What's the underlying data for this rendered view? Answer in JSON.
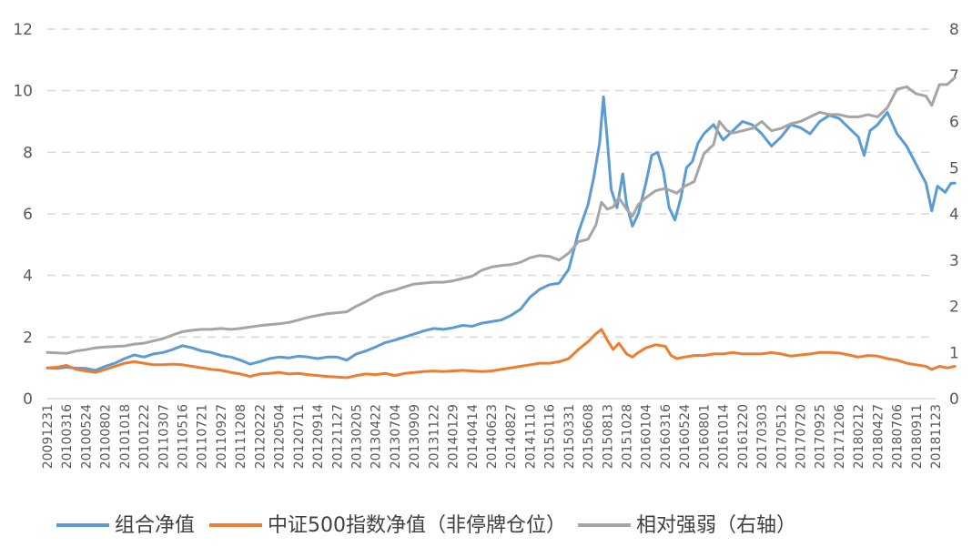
{
  "chart_data": {
    "type": "line",
    "title": "",
    "xlabel": "",
    "ylabel": "",
    "ylim": [
      0,
      12
    ],
    "y2lim": [
      0,
      8
    ],
    "left_ticks": [
      "0",
      "2",
      "4",
      "6",
      "8",
      "10",
      "12"
    ],
    "right_ticks": [
      "0",
      "1",
      "2",
      "3",
      "4",
      "5",
      "6",
      "7",
      "8"
    ],
    "grid": "horizontal dashed",
    "legend_position": "bottom",
    "x_tick_labels": [
      "20091231",
      "20100316",
      "20100524",
      "20100802",
      "20101018",
      "20101222",
      "20110307",
      "20110516",
      "20110721",
      "20110927",
      "20111208",
      "20120222",
      "20120504",
      "20120711",
      "20120914",
      "20121127",
      "20130205",
      "20130422",
      "20130704",
      "20130909",
      "20131122",
      "20140129",
      "20140414",
      "20140623",
      "20140827",
      "20141110",
      "20150116",
      "20150331",
      "20150608",
      "20150813",
      "20151028",
      "20160104",
      "20160316",
      "20160524",
      "20160801",
      "20161014",
      "20161220",
      "20170303",
      "20170512",
      "20170720",
      "20170925",
      "20171206",
      "20180212",
      "20180427",
      "20180706",
      "20180911",
      "20181123"
    ],
    "series": [
      {
        "name": "组合净值",
        "axis": "left",
        "color": "#5B9BD5",
        "points": [
          [
            0,
            1.0
          ],
          [
            0.5,
            0.98
          ],
          [
            1,
            1.02
          ],
          [
            1.5,
            0.99
          ],
          [
            2,
            0.98
          ],
          [
            2.5,
            0.92
          ],
          [
            3,
            1.05
          ],
          [
            3.5,
            1.15
          ],
          [
            4,
            1.3
          ],
          [
            4.5,
            1.42
          ],
          [
            5,
            1.35
          ],
          [
            5.5,
            1.45
          ],
          [
            6,
            1.5
          ],
          [
            6.5,
            1.6
          ],
          [
            7,
            1.72
          ],
          [
            7.5,
            1.65
          ],
          [
            8,
            1.55
          ],
          [
            8.5,
            1.5
          ],
          [
            9,
            1.4
          ],
          [
            9.5,
            1.35
          ],
          [
            10,
            1.25
          ],
          [
            10.5,
            1.12
          ],
          [
            11,
            1.2
          ],
          [
            11.5,
            1.3
          ],
          [
            12,
            1.35
          ],
          [
            12.5,
            1.32
          ],
          [
            13,
            1.38
          ],
          [
            13.5,
            1.35
          ],
          [
            14,
            1.3
          ],
          [
            14.5,
            1.35
          ],
          [
            15,
            1.35
          ],
          [
            15.5,
            1.25
          ],
          [
            16,
            1.45
          ],
          [
            16.5,
            1.55
          ],
          [
            17,
            1.68
          ],
          [
            17.5,
            1.82
          ],
          [
            18,
            1.9
          ],
          [
            18.5,
            2.0
          ],
          [
            19,
            2.1
          ],
          [
            19.5,
            2.2
          ],
          [
            20,
            2.28
          ],
          [
            20.5,
            2.25
          ],
          [
            21,
            2.3
          ],
          [
            21.5,
            2.38
          ],
          [
            22,
            2.35
          ],
          [
            22.5,
            2.45
          ],
          [
            23,
            2.5
          ],
          [
            23.5,
            2.55
          ],
          [
            24,
            2.7
          ],
          [
            24.5,
            2.9
          ],
          [
            25,
            3.3
          ],
          [
            25.5,
            3.55
          ],
          [
            26,
            3.7
          ],
          [
            26.5,
            3.75
          ],
          [
            27,
            4.2
          ],
          [
            27.5,
            5.4
          ],
          [
            28,
            6.3
          ],
          [
            28.3,
            7.2
          ],
          [
            28.6,
            8.3
          ],
          [
            28.8,
            9.8
          ],
          [
            29.0,
            8.4
          ],
          [
            29.2,
            6.8
          ],
          [
            29.5,
            6.2
          ],
          [
            29.8,
            7.3
          ],
          [
            30.0,
            6.3
          ],
          [
            30.3,
            5.6
          ],
          [
            30.6,
            6.0
          ],
          [
            31,
            7.0
          ],
          [
            31.3,
            7.9
          ],
          [
            31.6,
            8.0
          ],
          [
            31.9,
            7.4
          ],
          [
            32.2,
            6.2
          ],
          [
            32.5,
            5.8
          ],
          [
            32.8,
            6.5
          ],
          [
            33.1,
            7.5
          ],
          [
            33.4,
            7.7
          ],
          [
            33.7,
            8.3
          ],
          [
            34,
            8.6
          ],
          [
            34.5,
            8.9
          ],
          [
            35,
            8.4
          ],
          [
            35.5,
            8.7
          ],
          [
            36,
            9.0
          ],
          [
            36.5,
            8.9
          ],
          [
            37,
            8.6
          ],
          [
            37.5,
            8.2
          ],
          [
            38,
            8.5
          ],
          [
            38.5,
            8.9
          ],
          [
            39,
            8.8
          ],
          [
            39.5,
            8.6
          ],
          [
            40,
            9.0
          ],
          [
            40.5,
            9.2
          ],
          [
            41,
            9.1
          ],
          [
            41.5,
            8.8
          ],
          [
            42,
            8.5
          ],
          [
            42.3,
            7.9
          ],
          [
            42.6,
            8.7
          ],
          [
            43,
            8.9
          ],
          [
            43.5,
            9.3
          ],
          [
            44,
            8.6
          ],
          [
            44.5,
            8.2
          ],
          [
            45,
            7.6
          ],
          [
            45.5,
            7.0
          ],
          [
            45.8,
            6.1
          ],
          [
            46.1,
            6.9
          ],
          [
            46.5,
            6.7
          ],
          [
            46.8,
            7.0
          ],
          [
            47,
            7.0
          ]
        ]
      },
      {
        "name": "中证500指数净值（非停牌仓位）",
        "axis": "left",
        "color": "#ED7D31",
        "points": [
          [
            0,
            1.0
          ],
          [
            0.5,
            1.02
          ],
          [
            1,
            1.08
          ],
          [
            1.5,
            0.95
          ],
          [
            2,
            0.9
          ],
          [
            2.5,
            0.85
          ],
          [
            3,
            0.95
          ],
          [
            3.5,
            1.05
          ],
          [
            4,
            1.15
          ],
          [
            4.5,
            1.2
          ],
          [
            5,
            1.15
          ],
          [
            5.5,
            1.1
          ],
          [
            6,
            1.1
          ],
          [
            6.5,
            1.12
          ],
          [
            7,
            1.1
          ],
          [
            7.5,
            1.05
          ],
          [
            8,
            1.0
          ],
          [
            8.5,
            0.95
          ],
          [
            9,
            0.92
          ],
          [
            9.5,
            0.85
          ],
          [
            10,
            0.8
          ],
          [
            10.5,
            0.72
          ],
          [
            11,
            0.8
          ],
          [
            11.5,
            0.82
          ],
          [
            12,
            0.85
          ],
          [
            12.5,
            0.8
          ],
          [
            13,
            0.82
          ],
          [
            13.5,
            0.78
          ],
          [
            14,
            0.75
          ],
          [
            14.5,
            0.72
          ],
          [
            15,
            0.7
          ],
          [
            15.5,
            0.68
          ],
          [
            16,
            0.75
          ],
          [
            16.5,
            0.8
          ],
          [
            17,
            0.78
          ],
          [
            17.5,
            0.82
          ],
          [
            18,
            0.75
          ],
          [
            18.5,
            0.82
          ],
          [
            19,
            0.85
          ],
          [
            19.5,
            0.88
          ],
          [
            20,
            0.9
          ],
          [
            20.5,
            0.88
          ],
          [
            21,
            0.9
          ],
          [
            21.5,
            0.92
          ],
          [
            22,
            0.9
          ],
          [
            22.5,
            0.88
          ],
          [
            23,
            0.9
          ],
          [
            23.5,
            0.95
          ],
          [
            24,
            1.0
          ],
          [
            24.5,
            1.05
          ],
          [
            25,
            1.1
          ],
          [
            25.5,
            1.15
          ],
          [
            26,
            1.15
          ],
          [
            26.5,
            1.2
          ],
          [
            27,
            1.3
          ],
          [
            27.5,
            1.6
          ],
          [
            28,
            1.85
          ],
          [
            28.4,
            2.1
          ],
          [
            28.7,
            2.25
          ],
          [
            29.0,
            1.9
          ],
          [
            29.3,
            1.6
          ],
          [
            29.6,
            1.8
          ],
          [
            30.0,
            1.45
          ],
          [
            30.3,
            1.35
          ],
          [
            30.6,
            1.5
          ],
          [
            31,
            1.65
          ],
          [
            31.5,
            1.75
          ],
          [
            32,
            1.7
          ],
          [
            32.3,
            1.4
          ],
          [
            32.6,
            1.3
          ],
          [
            33,
            1.35
          ],
          [
            33.5,
            1.4
          ],
          [
            34,
            1.4
          ],
          [
            34.5,
            1.45
          ],
          [
            35,
            1.45
          ],
          [
            35.5,
            1.5
          ],
          [
            36,
            1.45
          ],
          [
            36.5,
            1.45
          ],
          [
            37,
            1.45
          ],
          [
            37.5,
            1.5
          ],
          [
            38,
            1.45
          ],
          [
            38.5,
            1.38
          ],
          [
            39,
            1.42
          ],
          [
            39.5,
            1.45
          ],
          [
            40,
            1.5
          ],
          [
            40.5,
            1.5
          ],
          [
            41,
            1.48
          ],
          [
            41.5,
            1.42
          ],
          [
            42,
            1.35
          ],
          [
            42.5,
            1.4
          ],
          [
            43,
            1.38
          ],
          [
            43.5,
            1.3
          ],
          [
            44,
            1.25
          ],
          [
            44.5,
            1.15
          ],
          [
            45,
            1.1
          ],
          [
            45.5,
            1.05
          ],
          [
            45.8,
            0.95
          ],
          [
            46.2,
            1.05
          ],
          [
            46.6,
            1.0
          ],
          [
            47,
            1.05
          ]
        ]
      },
      {
        "name": "相对强弱（右轴）",
        "axis": "right",
        "color": "#A5A5A5",
        "points": [
          [
            0,
            1.0
          ],
          [
            0.5,
            0.99
          ],
          [
            1,
            0.98
          ],
          [
            1.5,
            1.03
          ],
          [
            2,
            1.06
          ],
          [
            2.5,
            1.1
          ],
          [
            3,
            1.12
          ],
          [
            3.5,
            1.13
          ],
          [
            4,
            1.14
          ],
          [
            4.5,
            1.18
          ],
          [
            5,
            1.2
          ],
          [
            5.5,
            1.25
          ],
          [
            6,
            1.3
          ],
          [
            6.5,
            1.38
          ],
          [
            7,
            1.45
          ],
          [
            7.5,
            1.48
          ],
          [
            8,
            1.5
          ],
          [
            8.5,
            1.5
          ],
          [
            9,
            1.52
          ],
          [
            9.5,
            1.5
          ],
          [
            10,
            1.52
          ],
          [
            10.5,
            1.55
          ],
          [
            11,
            1.58
          ],
          [
            11.5,
            1.6
          ],
          [
            12,
            1.62
          ],
          [
            12.5,
            1.65
          ],
          [
            13,
            1.7
          ],
          [
            13.5,
            1.76
          ],
          [
            14,
            1.8
          ],
          [
            14.5,
            1.84
          ],
          [
            15,
            1.86
          ],
          [
            15.5,
            1.88
          ],
          [
            16,
            2.0
          ],
          [
            16.5,
            2.1
          ],
          [
            17,
            2.22
          ],
          [
            17.5,
            2.3
          ],
          [
            18,
            2.35
          ],
          [
            18.5,
            2.42
          ],
          [
            19,
            2.48
          ],
          [
            19.5,
            2.5
          ],
          [
            20,
            2.52
          ],
          [
            20.5,
            2.52
          ],
          [
            21,
            2.55
          ],
          [
            21.5,
            2.6
          ],
          [
            22,
            2.65
          ],
          [
            22.5,
            2.78
          ],
          [
            23,
            2.85
          ],
          [
            23.5,
            2.88
          ],
          [
            24,
            2.9
          ],
          [
            24.5,
            2.95
          ],
          [
            25,
            3.05
          ],
          [
            25.5,
            3.1
          ],
          [
            26,
            3.08
          ],
          [
            26.5,
            3.0
          ],
          [
            27,
            3.15
          ],
          [
            27.5,
            3.4
          ],
          [
            28,
            3.45
          ],
          [
            28.4,
            3.75
          ],
          [
            28.7,
            4.25
          ],
          [
            29.0,
            4.1
          ],
          [
            29.3,
            4.15
          ],
          [
            29.6,
            4.35
          ],
          [
            30.0,
            4.1
          ],
          [
            30.3,
            3.95
          ],
          [
            30.6,
            4.2
          ],
          [
            31,
            4.35
          ],
          [
            31.5,
            4.5
          ],
          [
            32,
            4.55
          ],
          [
            32.3,
            4.5
          ],
          [
            32.6,
            4.45
          ],
          [
            33,
            4.6
          ],
          [
            33.5,
            4.7
          ],
          [
            34,
            5.3
          ],
          [
            34.5,
            5.5
          ],
          [
            34.8,
            6.0
          ],
          [
            35.2,
            5.8
          ],
          [
            35.5,
            5.75
          ],
          [
            36,
            5.8
          ],
          [
            36.5,
            5.85
          ],
          [
            37,
            6.0
          ],
          [
            37.5,
            5.8
          ],
          [
            38,
            5.85
          ],
          [
            38.5,
            5.95
          ],
          [
            39,
            6.0
          ],
          [
            39.5,
            6.1
          ],
          [
            40,
            6.2
          ],
          [
            40.5,
            6.15
          ],
          [
            41,
            6.15
          ],
          [
            41.5,
            6.1
          ],
          [
            42,
            6.1
          ],
          [
            42.5,
            6.15
          ],
          [
            43,
            6.1
          ],
          [
            43.5,
            6.3
          ],
          [
            44,
            6.7
          ],
          [
            44.5,
            6.75
          ],
          [
            45,
            6.6
          ],
          [
            45.5,
            6.55
          ],
          [
            45.8,
            6.35
          ],
          [
            46.2,
            6.8
          ],
          [
            46.6,
            6.8
          ],
          [
            47,
            6.95
          ]
        ]
      }
    ]
  }
}
